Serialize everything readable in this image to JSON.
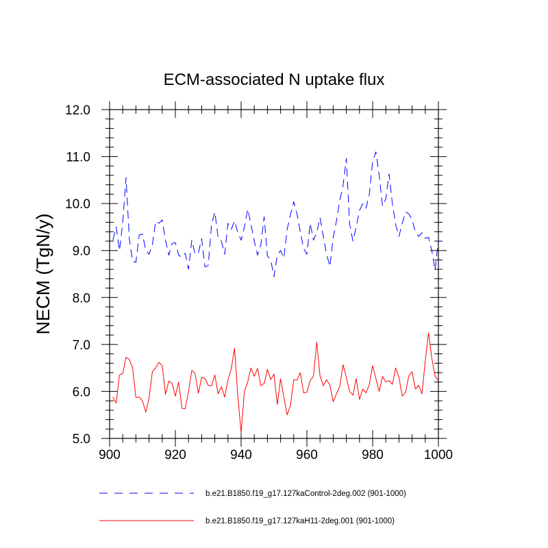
{
  "chart_data": {
    "type": "line",
    "title": "ECM-associated N uptake flux",
    "xlabel": "",
    "ylabel": "NECM  (TgN/y)",
    "xlim": [
      900,
      1000
    ],
    "ylim": [
      5.0,
      12.0
    ],
    "xticks": [
      900,
      920,
      940,
      960,
      980,
      1000
    ],
    "xtick_labels": [
      "900",
      "920",
      "940",
      "960",
      "980",
      "1000"
    ],
    "yticks": [
      5.0,
      6.0,
      7.0,
      8.0,
      9.0,
      10.0,
      11.0,
      12.0
    ],
    "ytick_labels": [
      "5.0",
      "6.0",
      "7.0",
      "8.0",
      "9.0",
      "10.0",
      "11.0",
      "12.0"
    ],
    "x_start": 901,
    "x_step": 1,
    "series": [
      {
        "name": "b.e21.B1850.f19_g17.127kaControl-2deg.002 (901-1000)",
        "color": "#0000ff",
        "dash": "dashed",
        "values": [
          9.22,
          9.5,
          9.0,
          9.6,
          10.55,
          9.25,
          8.77,
          8.75,
          9.33,
          9.35,
          9.0,
          8.92,
          9.12,
          9.62,
          9.58,
          9.65,
          9.22,
          8.9,
          9.15,
          9.17,
          8.9,
          8.86,
          8.94,
          8.6,
          9.22,
          8.92,
          8.95,
          9.25,
          8.65,
          8.68,
          9.55,
          9.82,
          9.28,
          9.2,
          8.92,
          9.58,
          9.45,
          9.63,
          9.38,
          9.22,
          9.5,
          9.88,
          9.56,
          9.2,
          8.9,
          9.12,
          9.72,
          8.88,
          8.8,
          8.44,
          8.9,
          9.0,
          8.84,
          9.45,
          9.76,
          10.04,
          9.78,
          9.4,
          9.05,
          8.92,
          9.58,
          9.22,
          9.38,
          9.7,
          9.3,
          8.92,
          8.66,
          9.28,
          9.63,
          10.07,
          10.38,
          10.96,
          9.57,
          9.2,
          9.5,
          9.85,
          10.0,
          9.9,
          10.2,
          10.9,
          11.1,
          10.6,
          9.95,
          10.1,
          10.63,
          10.0,
          9.55,
          9.3,
          9.58,
          9.82,
          9.78,
          9.65,
          9.4,
          9.3,
          9.38,
          9.26,
          9.28,
          9.0,
          8.58,
          9.22
        ]
      },
      {
        "name": "b.e21.B1850.f19_g17.127kaH11-2deg.001 (901-1000)",
        "color": "#ff0000",
        "dash": "solid",
        "values": [
          5.88,
          5.75,
          6.35,
          6.38,
          6.73,
          6.68,
          6.5,
          5.87,
          5.88,
          5.8,
          5.56,
          5.86,
          6.42,
          6.5,
          6.62,
          6.55,
          5.94,
          6.22,
          6.17,
          5.9,
          6.2,
          5.64,
          5.63,
          6.0,
          6.45,
          6.38,
          5.96,
          6.3,
          6.28,
          6.13,
          6.12,
          6.35,
          5.95,
          6.1,
          5.88,
          6.25,
          6.48,
          6.92,
          5.9,
          5.12,
          6.0,
          6.2,
          6.5,
          6.32,
          6.49,
          6.12,
          6.17,
          6.47,
          6.25,
          6.37,
          5.72,
          6.27,
          5.87,
          5.5,
          5.7,
          6.25,
          6.24,
          6.4,
          5.97,
          5.98,
          6.23,
          6.32,
          7.05,
          6.33,
          6.12,
          6.25,
          6.13,
          5.78,
          5.95,
          6.1,
          6.57,
          6.3,
          6.0,
          5.92,
          6.27,
          5.83,
          6.05,
          5.97,
          6.15,
          6.55,
          6.27,
          6.0,
          6.32,
          6.2,
          6.23,
          6.15,
          6.5,
          6.3,
          5.9,
          5.98,
          6.33,
          6.42,
          6.05,
          6.13,
          5.95,
          6.65,
          7.25,
          6.7,
          6.32,
          6.23
        ]
      }
    ]
  }
}
